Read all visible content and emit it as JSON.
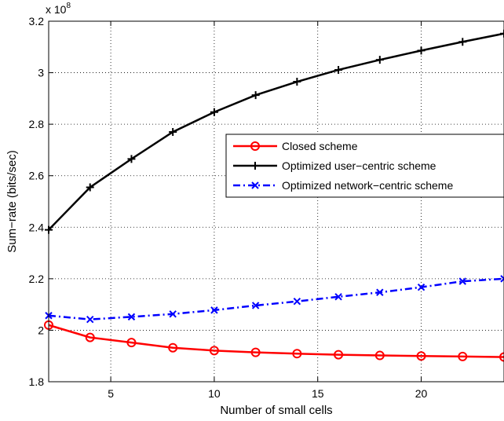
{
  "chart_data": {
    "type": "line",
    "xlabel": "Number of small cells",
    "ylabel": "Sum−rate (bits/sec)",
    "y_exponent_label": "x 10",
    "y_exponent_power": "8",
    "xlim": [
      2,
      24
    ],
    "ylim": [
      1.8,
      3.2
    ],
    "xticks": [
      5,
      10,
      15,
      20
    ],
    "yticks": [
      1.8,
      2.0,
      2.2,
      2.4,
      2.6,
      2.8,
      3.0,
      3.2
    ],
    "ytick_labels": [
      "1.8",
      "2",
      "2.2",
      "2.4",
      "2.6",
      "2.8",
      "3",
      "3.2"
    ],
    "grid": true,
    "legend_position": "right, mid-upper",
    "x": [
      2,
      4,
      6,
      8,
      10,
      12,
      14,
      16,
      18,
      20,
      22,
      24
    ],
    "series": [
      {
        "name": "Closed scheme",
        "color": "#ff0000",
        "marker": "circle",
        "line_style": "solid",
        "values": [
          2.02,
          1.972,
          1.952,
          1.932,
          1.921,
          1.914,
          1.909,
          1.905,
          1.902,
          1.9,
          1.898,
          1.896
        ]
      },
      {
        "name": "Optimized user−centric scheme",
        "color": "#000000",
        "marker": "plus",
        "line_style": "solid",
        "values": [
          2.39,
          2.555,
          2.665,
          2.77,
          2.847,
          2.913,
          2.965,
          3.011,
          3.05,
          3.086,
          3.12,
          3.152
        ]
      },
      {
        "name": "Optimized network−centric scheme",
        "color": "#0000ff",
        "marker": "x",
        "line_style": "dashdot",
        "values": [
          2.057,
          2.042,
          2.052,
          2.063,
          2.078,
          2.096,
          2.112,
          2.13,
          2.147,
          2.167,
          2.19,
          2.2
        ]
      }
    ]
  }
}
